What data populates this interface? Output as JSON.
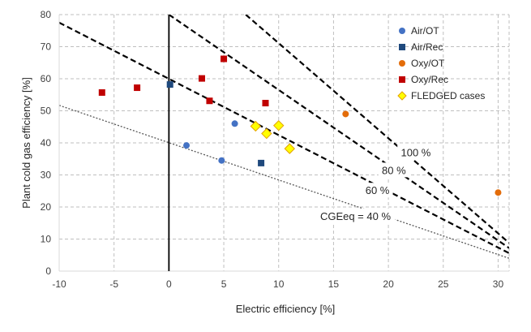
{
  "chart_data": {
    "type": "scatter",
    "xlabel": "Electric efficiency [%]",
    "ylabel": "Plant cold gas efficiency [%]",
    "xlim": [
      -10,
      31
    ],
    "ylim": [
      0,
      80
    ],
    "xticks": [
      -10,
      -5,
      0,
      5,
      10,
      15,
      20,
      25,
      30
    ],
    "yticks": [
      0,
      10,
      20,
      30,
      40,
      50,
      60,
      70,
      80
    ],
    "grid": "dashed-both",
    "legend_position": "top-right",
    "series": [
      {
        "name": "Air/OT",
        "marker": "circle",
        "color": "#4472C4",
        "points": [
          [
            1.6,
            39.2
          ],
          [
            4.8,
            34.5
          ],
          [
            6.0,
            46.0
          ]
        ]
      },
      {
        "name": "Air/Rec",
        "marker": "square",
        "color": "#1F497D",
        "points": [
          [
            0.1,
            58.2
          ],
          [
            8.4,
            33.7
          ]
        ]
      },
      {
        "name": "Oxy/OT",
        "marker": "circle",
        "color": "#E36C0A",
        "points": [
          [
            16.1,
            49.0
          ],
          [
            30.0,
            24.5
          ]
        ]
      },
      {
        "name": "Oxy/Rec",
        "marker": "square",
        "color": "#C00000",
        "points": [
          [
            -6.1,
            55.7
          ],
          [
            -2.9,
            57.2
          ],
          [
            3.0,
            60.1
          ],
          [
            3.7,
            53.1
          ],
          [
            5.0,
            66.2
          ],
          [
            8.8,
            52.4
          ]
        ]
      },
      {
        "name": "FLEDGED cases",
        "marker": "diamond",
        "color": "#FFFF00",
        "stroke": "#E3A100",
        "points": [
          [
            7.9,
            45.2
          ],
          [
            8.9,
            42.9
          ],
          [
            10.0,
            45.4
          ],
          [
            11.0,
            38.2
          ]
        ]
      }
    ],
    "reference_lines": [
      {
        "label": "CGEeq = 40 %",
        "style": "dotted",
        "color": "#595959",
        "x1": -10,
        "y1": 51.7,
        "x2": 31,
        "y2": 4.0,
        "label_at": [
          17.0,
          16.5
        ]
      },
      {
        "label": "60 %",
        "style": "dashed",
        "color": "#000000",
        "x1": -10,
        "y1": 77.5,
        "x2": 31,
        "y2": 5.6,
        "label_at": [
          19.0,
          24.5
        ]
      },
      {
        "label": "80 %",
        "style": "dashed",
        "color": "#000000",
        "x1": 0,
        "y1": 80,
        "x2": 31,
        "y2": 7.2,
        "label_at": [
          20.5,
          30.8
        ]
      },
      {
        "label": "100 %",
        "style": "dashed",
        "color": "#000000",
        "x1": 7.0,
        "y1": 80,
        "x2": 31,
        "y2": 8.8,
        "label_at": [
          22.5,
          36.3
        ]
      }
    ]
  }
}
